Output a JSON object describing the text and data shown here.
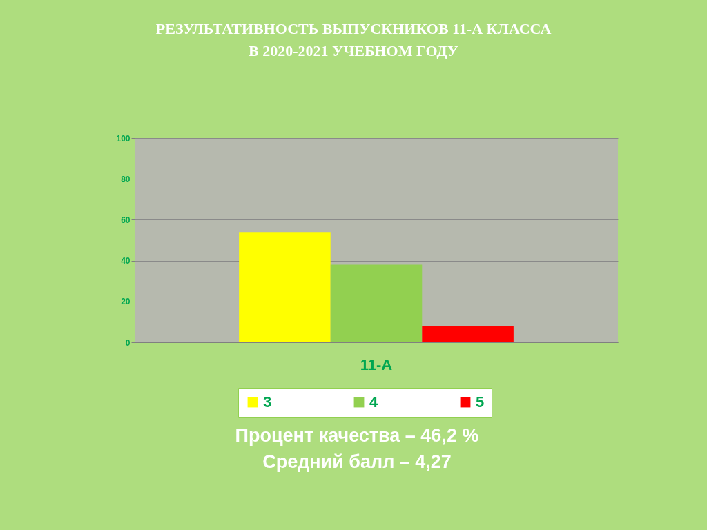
{
  "chart_data": {
    "type": "bar",
    "title": "РЕЗУЛЬТАТИВНОСТЬ  ВЫПУСКНИКОВ 11-А КЛАССА\nВ 2020-2021 УЧЕБНОМ ГОДУ",
    "categories": [
      "11-А"
    ],
    "series": [
      {
        "name": "3",
        "color": "#ffff00",
        "values": [
          54
        ]
      },
      {
        "name": "4",
        "color": "#92d050",
        "values": [
          38
        ]
      },
      {
        "name": "5",
        "color": "#ff0000",
        "values": [
          8
        ]
      }
    ],
    "ylim": [
      0,
      100
    ],
    "yticks": [
      0,
      20,
      40,
      60,
      80,
      100
    ],
    "grid": "y",
    "legend": "bottom",
    "annotations": [
      "Процент качества – 46,2 %",
      "Средний балл –  4,27"
    ]
  }
}
